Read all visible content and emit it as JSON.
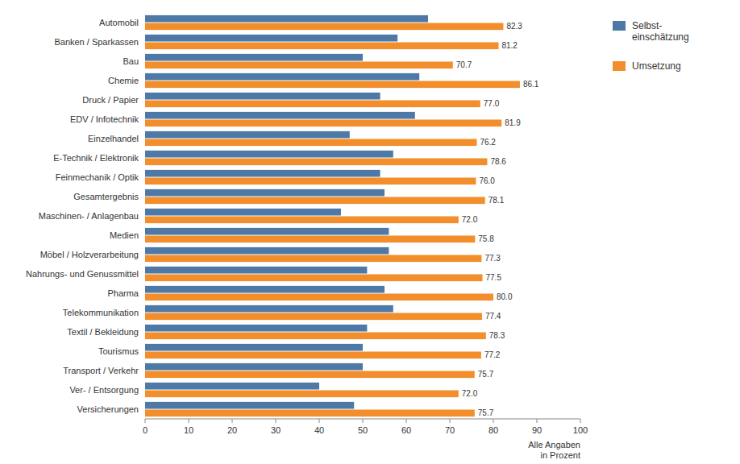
{
  "chart_data": {
    "type": "bar",
    "orientation": "horizontal",
    "categories": [
      "Automobil",
      "Banken / Sparkassen",
      "Bau",
      "Chemie",
      "Druck / Papier",
      "EDV / Infotechnik",
      "Einzelhandel",
      "E-Technik / Elektronik",
      "Feinmechanik / Optik",
      "Gesamtergebnis",
      "Maschinen- / Anlagenbau",
      "Medien",
      "Möbel / Holzverarbeitung",
      "Nahrungs- und Genussmittel",
      "Pharma",
      "Telekommunikation",
      "Textil / Bekleidung",
      "Tourismus",
      "Transport / Verkehr",
      "Ver- / Entsorgung",
      "Versicherungen"
    ],
    "series": [
      {
        "name": "Selbst-\neinschätzung",
        "values": [
          65,
          58,
          50,
          63,
          54,
          62,
          47,
          57,
          54,
          55,
          45,
          56,
          56,
          51,
          55,
          57,
          51,
          50,
          50,
          40,
          48
        ]
      },
      {
        "name": "Umsetzung",
        "values": [
          82.3,
          81.2,
          70.7,
          86.1,
          77.0,
          81.9,
          76.2,
          78.6,
          76.0,
          78.1,
          72.0,
          75.8,
          77.3,
          77.5,
          80.0,
          77.4,
          78.3,
          77.2,
          75.7,
          72.0,
          75.7
        ],
        "data_labels": true,
        "value_labels": [
          "82.3",
          "81.2",
          "70.7",
          "86.1",
          "77.0",
          "81.9",
          "76.2",
          "78.6",
          "76.0",
          "78.1",
          "72.0",
          "75.8",
          "77.3",
          "77.5",
          "80.0",
          "77.4",
          "78.3",
          "77.2",
          "75.7",
          "72.0",
          "75.7"
        ]
      }
    ],
    "x_label": "Alle Angaben\nin Prozent",
    "xlim": [
      0,
      100
    ],
    "xticks": [
      0,
      10,
      20,
      30,
      40,
      50,
      60,
      70,
      80,
      90,
      100
    ],
    "grid": false,
    "legend": "right"
  }
}
